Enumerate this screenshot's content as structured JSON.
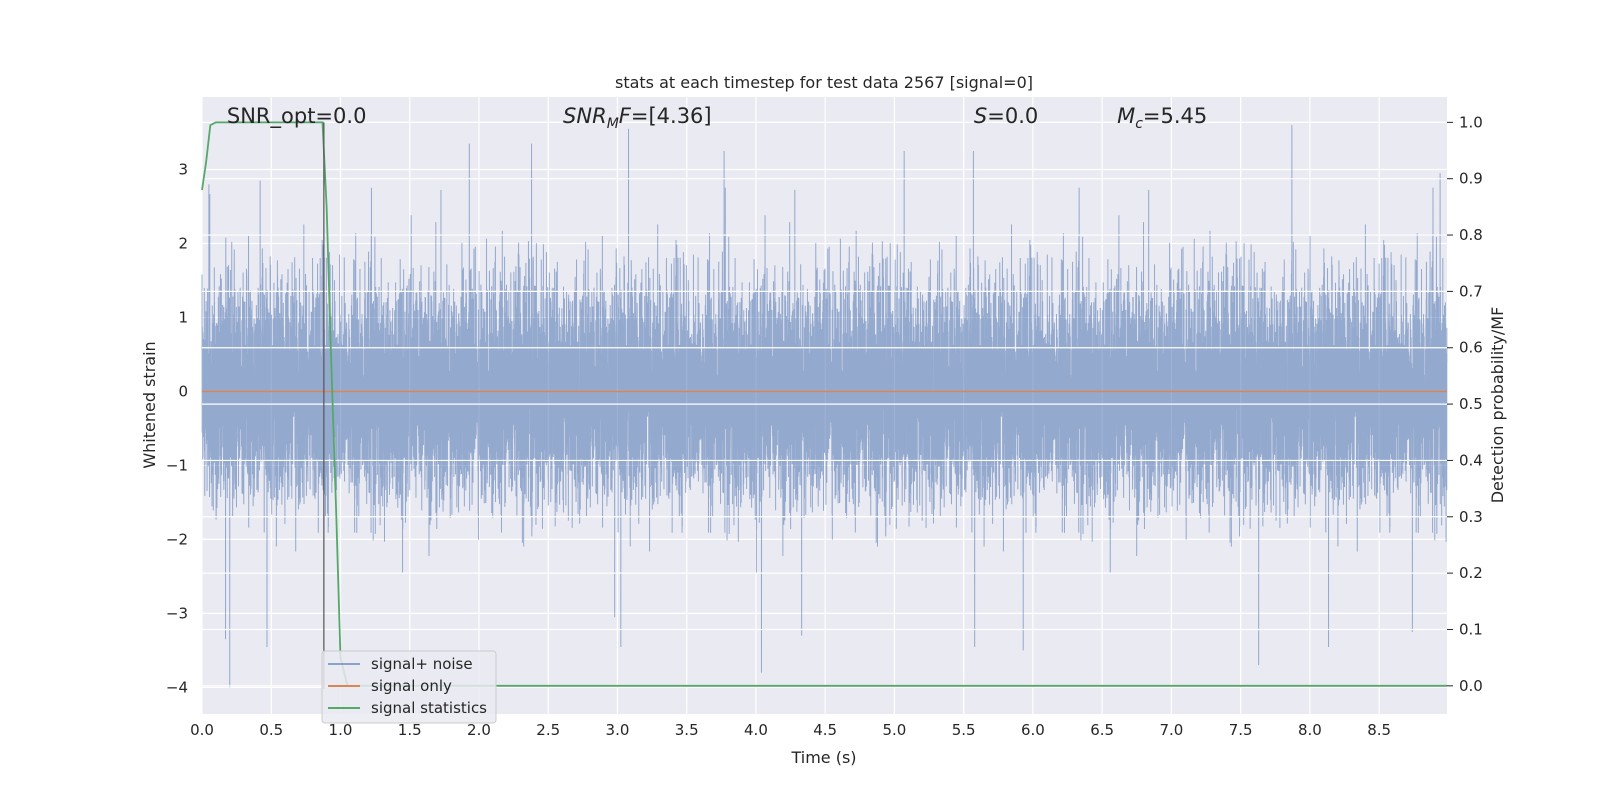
{
  "chart_data": {
    "type": "line",
    "title": "stats at each timestep for test data 2567 [signal=0]",
    "xlabel": "Time (s)",
    "ylabel": "Whitened strain",
    "y2label": "Detection probability/MF",
    "xlim": [
      0.0,
      8.99
    ],
    "ylim": [
      -4.36,
      3.98
    ],
    "y2lim": [
      -0.05,
      1.045
    ],
    "xticks": [
      0.0,
      0.5,
      1.0,
      1.5,
      2.0,
      2.5,
      3.0,
      3.5,
      4.0,
      4.5,
      5.0,
      5.5,
      6.0,
      6.5,
      7.0,
      7.5,
      8.0,
      8.5
    ],
    "xtick_labels": [
      "0.0",
      "0.5",
      "1.0",
      "1.5",
      "2.0",
      "2.5",
      "3.0",
      "3.5",
      "4.0",
      "4.5",
      "5.0",
      "5.5",
      "6.0",
      "6.5",
      "7.0",
      "7.5",
      "8.0",
      "8.5"
    ],
    "yticks": [
      -4,
      -3,
      -2,
      -1,
      0,
      1,
      2,
      3
    ],
    "ytick_labels": [
      "−4",
      "−3",
      "−2",
      "−1",
      "0",
      "1",
      "2",
      "3"
    ],
    "y2ticks": [
      0.0,
      0.1,
      0.2,
      0.3,
      0.4,
      0.5,
      0.6,
      0.7,
      0.8,
      0.9,
      1.0
    ],
    "y2tick_labels": [
      "0.0",
      "0.1",
      "0.2",
      "0.3",
      "0.4",
      "0.5",
      "0.6",
      "0.7",
      "0.8",
      "0.9",
      "1.0"
    ],
    "grid": true,
    "legend_position": "lower-left",
    "background_color": "#eaeaf2",
    "series": [
      {
        "name": "signal+ noise",
        "color": "#4c72b0",
        "axis": "left",
        "kind": "noise",
        "sample_rate_hz": 2048,
        "duration_s": 8.99,
        "std": 1.0,
        "peaks": [
          {
            "x": 0.05,
            "y": 2.8
          },
          {
            "x": 0.42,
            "y": 2.85
          },
          {
            "x": 0.2,
            "y": -4.0
          },
          {
            "x": 0.17,
            "y": -3.35
          },
          {
            "x": 1.93,
            "y": 3.35
          },
          {
            "x": 2.38,
            "y": 3.35
          },
          {
            "x": 3.08,
            "y": 3.55
          },
          {
            "x": 3.77,
            "y": 3.25
          },
          {
            "x": 4.04,
            "y": -3.8
          },
          {
            "x": 4.33,
            "y": -3.3
          },
          {
            "x": 5.07,
            "y": 3.25
          },
          {
            "x": 5.57,
            "y": 3.25
          },
          {
            "x": 5.93,
            "y": -3.5
          },
          {
            "x": 7.87,
            "y": 3.6
          },
          {
            "x": 7.63,
            "y": -3.7
          },
          {
            "x": 8.94,
            "y": 2.95
          },
          {
            "x": 8.74,
            "y": -3.25
          },
          {
            "x": 2.98,
            "y": -3.05
          }
        ]
      },
      {
        "name": "signal only",
        "color": "#dd8452",
        "axis": "left",
        "x": [
          0.0,
          8.99
        ],
        "y": [
          0.0,
          0.0
        ]
      },
      {
        "name": "signal statistics",
        "color": "#55a868",
        "axis": "right",
        "x": [
          0.0,
          0.03,
          0.06,
          0.1,
          0.2,
          0.4,
          0.6,
          0.8,
          0.87,
          0.9,
          0.93,
          0.97,
          1.0,
          1.05,
          1.2,
          2.0,
          4.0,
          6.0,
          8.0,
          8.99
        ],
        "y": [
          0.88,
          0.93,
          0.995,
          1.0,
          1.0,
          1.0,
          1.0,
          1.0,
          1.0,
          0.85,
          0.6,
          0.3,
          0.05,
          0.0,
          0.0,
          0.0,
          0.0,
          0.0,
          0.0,
          0.0
        ]
      }
    ],
    "marker_line": {
      "x": 0.88,
      "color": "#555555"
    },
    "annotations": [
      {
        "text": "SNR_opt=0.0",
        "x_frac": 0.02
      },
      {
        "text_main": "SNR",
        "text_sub": "M",
        "text_tail": "F=[4.36]",
        "x_frac": 0.29
      },
      {
        "text_main": "S",
        "text_sub": "",
        "text_tail": "=0.0",
        "x_frac": 0.62
      },
      {
        "text_main": "M",
        "text_sub": "c",
        "text_tail": "=5.45",
        "x_frac": 0.735
      }
    ]
  }
}
